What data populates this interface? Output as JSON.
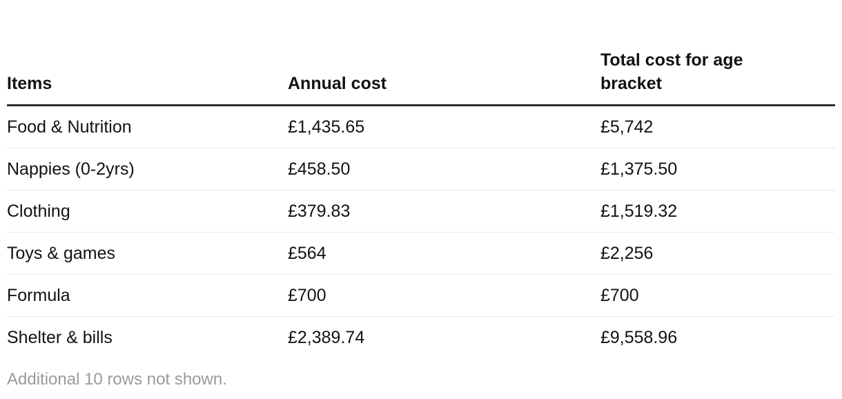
{
  "table": {
    "columns": [
      "Items",
      "Annual cost",
      "Total cost for age bracket"
    ],
    "rows": [
      {
        "item": "Food & Nutrition",
        "annual_cost": "£1,435.65",
        "total_cost": "£5,742"
      },
      {
        "item": "Nappies (0-2yrs)",
        "annual_cost": "£458.50",
        "total_cost": "£1,375.50"
      },
      {
        "item": "Clothing",
        "annual_cost": "£379.83",
        "total_cost": "£1,519.32"
      },
      {
        "item": "Toys & games",
        "annual_cost": "£564",
        "total_cost": "£2,256"
      },
      {
        "item": "Formula",
        "annual_cost": "£700",
        "total_cost": "£700"
      },
      {
        "item": "Shelter & bills",
        "annual_cost": "£2,389.74",
        "total_cost": "£9,558.96"
      }
    ]
  },
  "footer": {
    "note": "Additional 10 rows not shown."
  },
  "colors": {
    "text": "#121212",
    "header_rule": "#2d2d2d",
    "row_separator": "#eaeaea",
    "footnote_gray": "#9a9a9a",
    "background": "#ffffff"
  },
  "chart_data": {
    "type": "table",
    "title": "",
    "columns": [
      "Items",
      "Annual cost",
      "Total cost for age bracket"
    ],
    "rows": [
      [
        "Food & Nutrition",
        "£1,435.65",
        "£5,742"
      ],
      [
        "Nappies (0-2yrs)",
        "£458.50",
        "£1,375.50"
      ],
      [
        "Clothing",
        "£379.83",
        "£1,519.32"
      ],
      [
        "Toys & games",
        "£564",
        "£2,256"
      ],
      [
        "Formula",
        "£700",
        "£700"
      ],
      [
        "Shelter & bills",
        "£2,389.74",
        "£9,558.96"
      ]
    ],
    "numeric_values": {
      "annual_cost": [
        1435.65,
        458.5,
        379.83,
        564,
        700,
        2389.74
      ],
      "total_cost_for_age_bracket": [
        5742,
        1375.5,
        1519.32,
        2256,
        700,
        9558.96
      ]
    },
    "note": "Additional 10 rows not shown."
  }
}
